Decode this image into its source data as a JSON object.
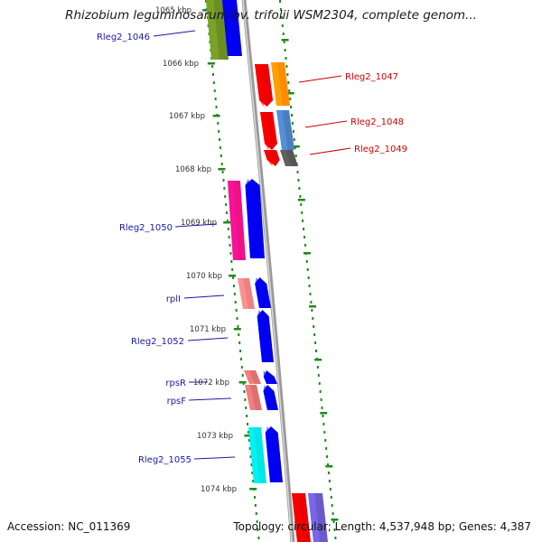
{
  "title": "Rhizobium leguminosarum bv. trifolii WSM2304, complete genom...",
  "accession": "Accession: NC_011369",
  "summary": "Topology: circular; Length: 4,537,948 bp; Genes: 4,387",
  "colors": {
    "backbone": "#8a8a8a",
    "tick": "#1f8a1f",
    "label_forward": "#1a1aa0",
    "label_reverse": "#cc0000"
  },
  "kbp_labels": [
    "1065 kbp",
    "1066 kbp",
    "1067 kbp",
    "1068 kbp",
    "1069 kbp",
    "1070 kbp",
    "1071 kbp",
    "1072 kbp",
    "1073 kbp",
    "1074 kbp"
  ],
  "genes": [
    {
      "label": "Rleg2_1046",
      "strand": "forward"
    },
    {
      "label": "Rleg2_1047",
      "strand": "reverse"
    },
    {
      "label": "Rleg2_1048",
      "strand": "reverse"
    },
    {
      "label": "Rleg2_1049",
      "strand": "reverse"
    },
    {
      "label": "Rleg2_1050",
      "strand": "forward"
    },
    {
      "label": "rplI",
      "strand": "forward"
    },
    {
      "label": "Rleg2_1052",
      "strand": "forward"
    },
    {
      "label": "rpsR",
      "strand": "forward"
    },
    {
      "label": "rpsF",
      "strand": "forward"
    },
    {
      "label": "Rleg2_1055",
      "strand": "forward"
    }
  ]
}
